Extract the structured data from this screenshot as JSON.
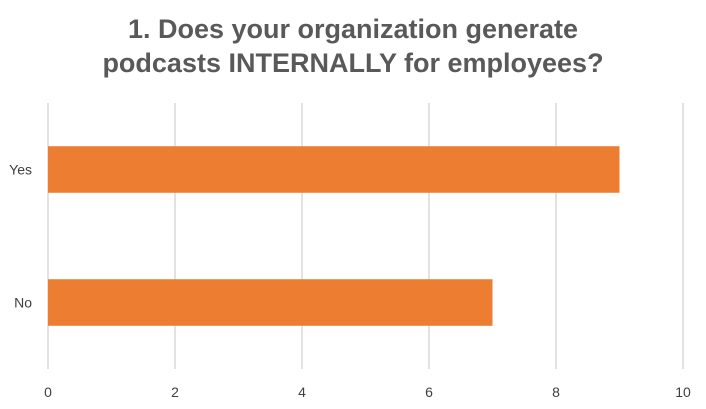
{
  "chart_data": {
    "type": "bar",
    "orientation": "horizontal",
    "title_lines": [
      "1. Does your organization generate",
      "podcasts INTERNALLY for employees?"
    ],
    "categories": [
      "Yes",
      "No"
    ],
    "values": [
      9,
      7
    ],
    "xlim": [
      0,
      10
    ],
    "xticks": [
      0,
      2,
      4,
      6,
      8,
      10
    ],
    "grid": true,
    "legend": "none",
    "bar_color": "#ED7D31",
    "grid_color": "#D9D9D9"
  }
}
